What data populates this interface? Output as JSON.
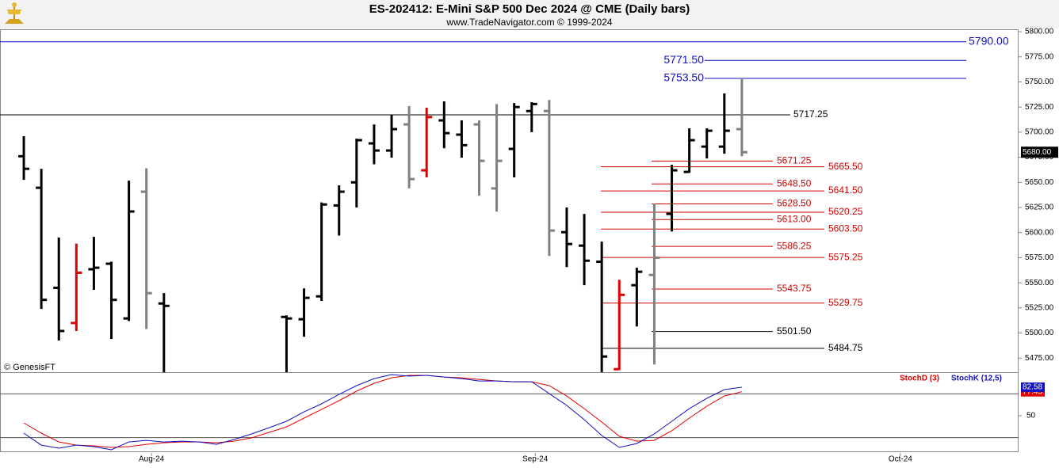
{
  "chart_data": {
    "type": "ohlc",
    "title": "ES-202412:  E-Mini S&P 500 Dec 2024 @ CME  (Daily bars)",
    "subtitle": "www.TradeNavigator.com © 1999-2024",
    "watermark": "© GenesisFT",
    "xlim": [
      -1.36,
      56.8
    ],
    "xticks": [
      {
        "value": 7.29,
        "label": "Aug-24"
      },
      {
        "value": 29.2,
        "label": "Sep-24"
      },
      {
        "value": 50.05,
        "label": "Oct-24"
      }
    ],
    "ylim": [
      5461,
      5802.4
    ],
    "yticks": [
      {
        "value": 5475,
        "label": "5475.00"
      },
      {
        "value": 5500,
        "label": "5500.00"
      },
      {
        "value": 5525,
        "label": "5525.00"
      },
      {
        "value": 5550,
        "label": "5550.00"
      },
      {
        "value": 5575,
        "label": "5575.00"
      },
      {
        "value": 5600,
        "label": "5600.00"
      },
      {
        "value": 5625,
        "label": "5625.00"
      },
      {
        "value": 5650,
        "label": "5650.00"
      },
      {
        "value": 5675,
        "label": "5675.00"
      },
      {
        "value": 5700,
        "label": "5700.00"
      },
      {
        "value": 5725,
        "label": "5725.00"
      },
      {
        "value": 5750,
        "label": "5750.00"
      },
      {
        "value": 5775,
        "label": "5775.00"
      },
      {
        "value": 5800,
        "label": "5800.00"
      }
    ],
    "last_price": {
      "value": 5680,
      "label": "5680.00"
    },
    "bars": {
      "x": [
        0,
        1,
        2,
        3,
        4,
        5,
        6,
        7,
        8,
        15,
        16,
        17,
        18,
        19,
        20,
        21,
        22,
        23,
        24,
        25,
        26,
        27,
        28,
        29,
        30,
        31,
        32,
        33,
        34,
        35,
        36,
        37,
        38,
        39,
        40,
        41
      ],
      "open": [
        5676,
        5644.6,
        5545,
        5510,
        5563.5,
        5569,
        5514.5,
        5640.7,
        5529.4,
        5516,
        5513.7,
        5536.5,
        5627,
        5650,
        5688.8,
        5681.7,
        5707.7,
        5662,
        5711.7,
        5697.5,
        5707.7,
        5644,
        5683.3,
        5721,
        5721,
        5600.4,
        5587,
        5571,
        5464,
        5547.6,
        5557.8,
        5618.6,
        5660.4,
        5685.6,
        5685.6,
        5703
      ],
      "high": [
        5696,
        5663.5,
        5595,
        5589,
        5595.7,
        5571,
        5651.7,
        5664,
        5539.7,
        5517.6,
        5544.4,
        5630,
        5647,
        5693.5,
        5707.7,
        5717,
        5726,
        5724.3,
        5730.6,
        5711.7,
        5711.7,
        5728,
        5729,
        5729.8,
        5732,
        5625,
        5618.6,
        5591,
        5553,
        5565,
        5628.8,
        5667.5,
        5703.8,
        5703.8,
        5738.5,
        5753.5
      ],
      "low": [
        5652.5,
        5524,
        5492.5,
        5502,
        5543,
        5494,
        5512,
        5504,
        5455,
        5450,
        5496.3,
        5532,
        5597,
        5625,
        5668,
        5674.6,
        5644,
        5655,
        5684,
        5674.6,
        5636.7,
        5621,
        5655,
        5700,
        5576.8,
        5565.7,
        5547.6,
        5455,
        5463,
        5506.5,
        5468.7,
        5601,
        5659.6,
        5673.8,
        5678.5,
        5676
      ],
      "close": [
        5663.5,
        5533,
        5502,
        5560,
        5565,
        5533,
        5621,
        5539.7,
        5527,
        5514.5,
        5535,
        5628,
        5640.7,
        5692,
        5681.7,
        5703,
        5653.3,
        5715,
        5699,
        5687,
        5671.4,
        5671.4,
        5725,
        5728,
        5602,
        5588.6,
        5572,
        5476.6,
        5538,
        5561,
        5575,
        5662,
        5692,
        5701.4,
        5701.4,
        5680
      ],
      "colors": [
        "#000000",
        "#000000",
        "#000000",
        "#e00000",
        "#000000",
        "#000000",
        "#000000",
        "#808080",
        "#000000",
        "#000000",
        "#000000",
        "#000000",
        "#000000",
        "#000000",
        "#000000",
        "#000000",
        "#808080",
        "#e00000",
        "#000000",
        "#000000",
        "#808080",
        "#808080",
        "#000000",
        "#000000",
        "#808080",
        "#000000",
        "#000000",
        "#000000",
        "#e00000",
        "#000000",
        "#808080",
        "#000000",
        "#000000",
        "#000000",
        "#000000",
        "#808080"
      ]
    },
    "levels": [
      {
        "value": 5790,
        "label": "5790.00",
        "color": "#1010c0"
      },
      {
        "value": 5771.5,
        "label": "5771.50",
        "color": "#1010c0"
      },
      {
        "value": 5753.5,
        "label": "5753.50",
        "color": "#1010c0"
      },
      {
        "value": 5717.25,
        "label": "5717.25",
        "color": "#000000"
      },
      {
        "value": 5671.25,
        "label": "5671.25",
        "color": "#d00000"
      },
      {
        "value": 5665.5,
        "label": "5665.50",
        "color": "#d00000"
      },
      {
        "value": 5648.5,
        "label": "5648.50",
        "color": "#d00000"
      },
      {
        "value": 5641.5,
        "label": "5641.50",
        "color": "#d00000"
      },
      {
        "value": 5628.5,
        "label": "5628.50",
        "color": "#d00000"
      },
      {
        "value": 5620.25,
        "label": "5620.25",
        "color": "#d00000"
      },
      {
        "value": 5613,
        "label": "5613.00",
        "color": "#d00000"
      },
      {
        "value": 5603.5,
        "label": "5603.50",
        "color": "#d00000"
      },
      {
        "value": 5586.25,
        "label": "5586.25",
        "color": "#d00000"
      },
      {
        "value": 5575.25,
        "label": "5575.25",
        "color": "#d00000"
      },
      {
        "value": 5543.75,
        "label": "5543.75",
        "color": "#d00000"
      },
      {
        "value": 5529.75,
        "label": "5529.75",
        "color": "#d00000"
      },
      {
        "value": 5501.5,
        "label": "5501.50",
        "color": "#000000"
      },
      {
        "value": 5484.75,
        "label": "5484.75",
        "color": "#000000"
      }
    ],
    "stoch": {
      "ylim": [
        7.5,
        98
      ],
      "yticks": [
        50
      ],
      "ref_lines": [
        25,
        75
      ],
      "x": [
        0,
        1,
        2,
        3,
        4,
        5,
        6,
        7,
        8,
        9,
        10,
        11,
        12,
        13,
        14,
        15,
        16,
        17,
        18,
        19,
        20,
        21,
        22,
        23,
        24,
        25,
        26,
        27,
        28,
        29,
        30,
        31,
        32,
        33,
        34,
        35,
        36,
        37,
        38,
        39,
        40,
        41
      ],
      "series": [
        {
          "name": "StochD (3)",
          "color": "#e00000",
          "last_label": "77.45",
          "values": [
            41.9,
            30.1,
            20.1,
            16.5,
            15.6,
            13.8,
            14.7,
            17.4,
            19.2,
            20.1,
            20.1,
            19.2,
            21.0,
            24.7,
            31.0,
            37.3,
            47.3,
            57.2,
            67.2,
            78.1,
            87.1,
            93.4,
            96.2,
            96.2,
            94.3,
            93.4,
            91.6,
            89.8,
            88.9,
            88.9,
            84.4,
            72.6,
            58.1,
            42.8,
            26.5,
            21.0,
            21.9,
            32.8,
            47.3,
            60.9,
            72.6,
            77.45
          ]
        },
        {
          "name": "StochK (12,5)",
          "color": "#1010c0",
          "last_label": "82.58",
          "values": [
            30.1,
            16.5,
            12.9,
            16.5,
            14.7,
            11.1,
            20.1,
            21.9,
            20.1,
            21.0,
            20.1,
            17.4,
            22.9,
            29.2,
            36.4,
            43.7,
            54.5,
            63.6,
            74.4,
            84.4,
            92.5,
            97.1,
            95.3,
            96.2,
            94.3,
            92.5,
            89.8,
            89.8,
            88.9,
            88.9,
            75.3,
            61.8,
            45.5,
            27.4,
            13.8,
            18.3,
            29.2,
            43.7,
            58.1,
            69.9,
            79.9,
            82.58
          ]
        }
      ]
    }
  }
}
